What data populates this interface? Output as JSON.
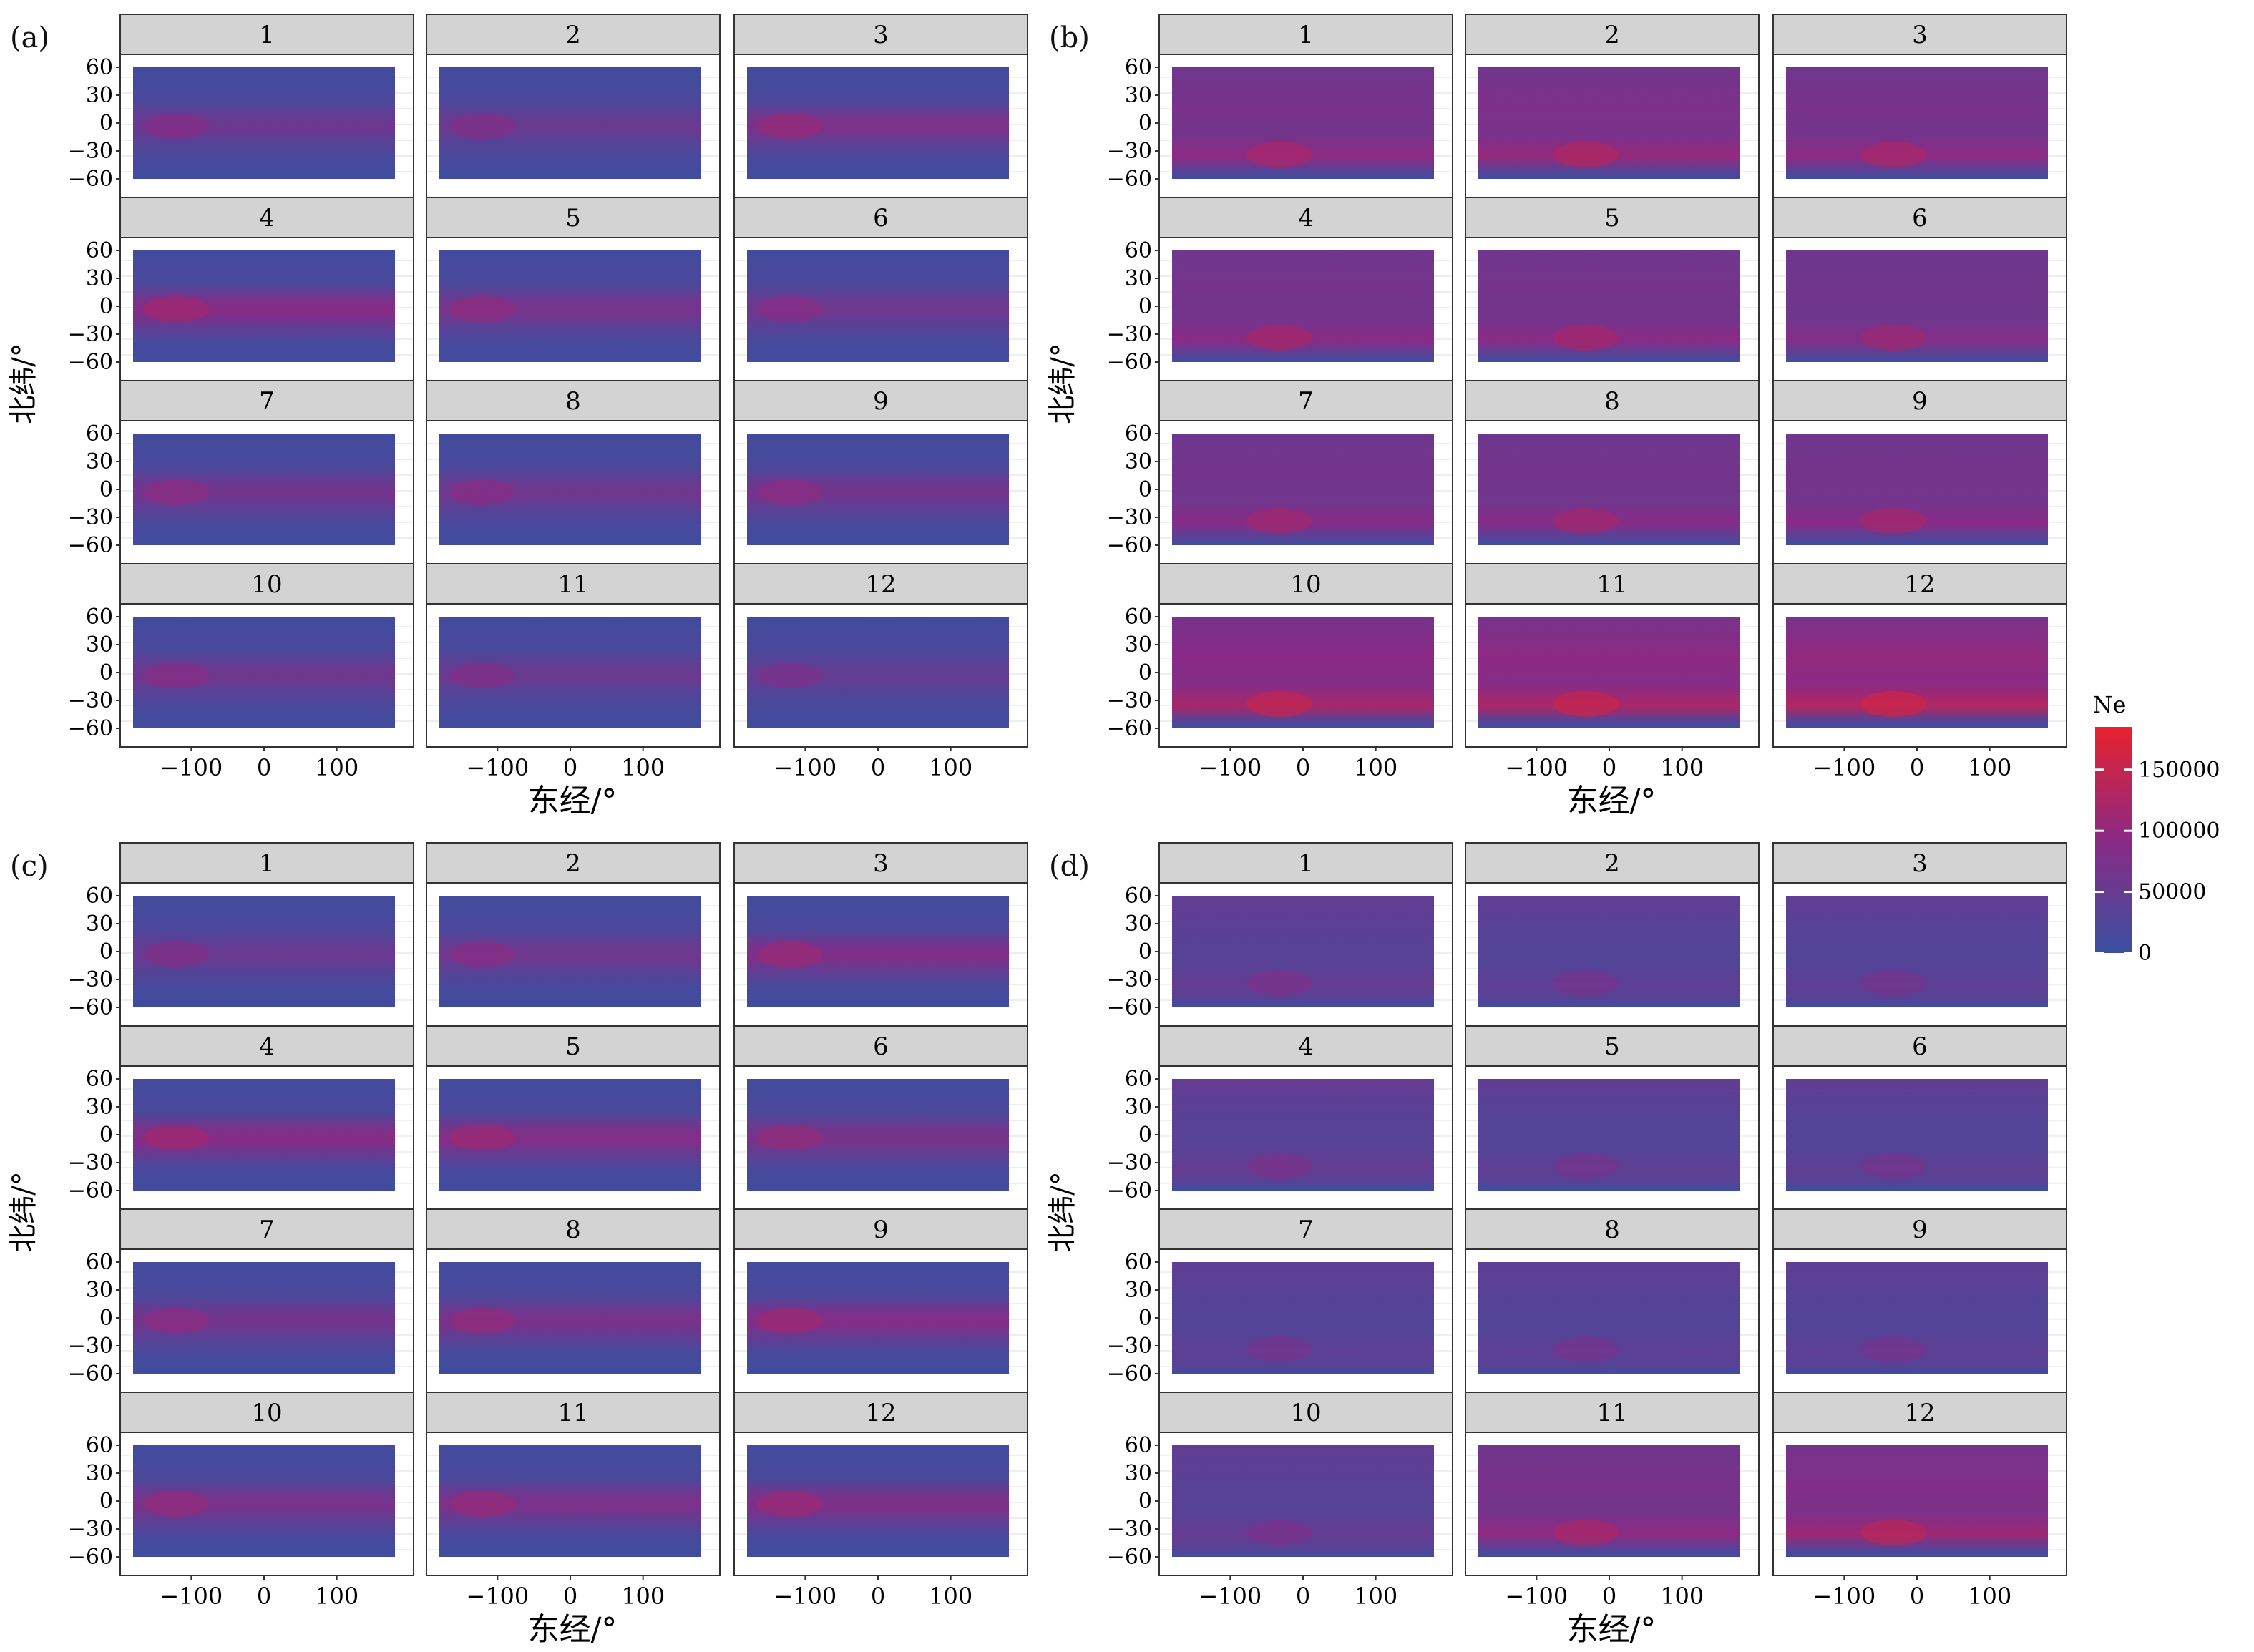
{
  "figure": {
    "panels": [
      {
        "id": "a",
        "label": "(a)",
        "months": [
          "1",
          "2",
          "3",
          "4",
          "5",
          "6",
          "7",
          "8",
          "9",
          "10",
          "11",
          "12"
        ],
        "intensity": [
          0.32,
          0.3,
          0.42,
          0.48,
          0.38,
          0.34,
          0.36,
          0.34,
          0.36,
          0.34,
          0.3,
          0.26
        ],
        "scheme": "equator"
      },
      {
        "id": "b",
        "label": "(b)",
        "months": [
          "1",
          "2",
          "3",
          "4",
          "5",
          "6",
          "7",
          "8",
          "9",
          "10",
          "11",
          "12"
        ],
        "intensity": [
          0.52,
          0.56,
          0.52,
          0.5,
          0.5,
          0.46,
          0.48,
          0.48,
          0.5,
          0.66,
          0.68,
          0.72
        ],
        "scheme": "south"
      },
      {
        "id": "c",
        "label": "(c)",
        "months": [
          "1",
          "2",
          "3",
          "4",
          "5",
          "6",
          "7",
          "8",
          "9",
          "10",
          "11",
          "12"
        ],
        "intensity": [
          0.3,
          0.34,
          0.44,
          0.48,
          0.46,
          0.4,
          0.36,
          0.4,
          0.46,
          0.4,
          0.42,
          0.44
        ],
        "scheme": "equator"
      },
      {
        "id": "d",
        "label": "(d)",
        "months": [
          "1",
          "2",
          "3",
          "4",
          "5",
          "6",
          "7",
          "8",
          "9",
          "10",
          "11",
          "12"
        ],
        "intensity": [
          0.26,
          0.22,
          0.22,
          0.26,
          0.22,
          0.22,
          0.22,
          0.22,
          0.22,
          0.26,
          0.52,
          0.6
        ],
        "scheme": "south"
      }
    ],
    "ylabel": "北纬/°",
    "xlabel": "东经/°",
    "yticks": [
      "60",
      "30",
      "0",
      "−30",
      "−60"
    ],
    "xticks": [
      "−100",
      "0",
      "100"
    ],
    "legend": {
      "title": "Ne",
      "ticks": [
        "150000",
        "100000",
        "50000",
        "0"
      ]
    }
  },
  "chart_data": {
    "type": "heatmap",
    "layout": "4 panels (a)-(d), each a 4x3 grid of monthly facets 1-12",
    "x": {
      "label": "东经/°",
      "range": [
        -180,
        180
      ],
      "ticks": [
        -100,
        0,
        100
      ]
    },
    "y": {
      "label": "北纬/°",
      "range": [
        -60,
        60
      ],
      "ticks": [
        60,
        30,
        0,
        -30,
        -60
      ]
    },
    "color_scale": {
      "name": "Ne",
      "min": 0,
      "max": 185000,
      "low_color": "#3a4fa0",
      "mid_color": "#8a2a85",
      "high_color": "#e8222e",
      "ticks": [
        0,
        50000,
        100000,
        150000
      ]
    },
    "panels": [
      {
        "label": "(a)",
        "facets": [
          1,
          2,
          3,
          4,
          5,
          6,
          7,
          8,
          9,
          10,
          11,
          12
        ],
        "peak_ne_estimate": [
          60000,
          55000,
          95000,
          120000,
          85000,
          70000,
          75000,
          70000,
          80000,
          75000,
          60000,
          50000
        ]
      },
      {
        "label": "(b)",
        "facets": [
          1,
          2,
          3,
          4,
          5,
          6,
          7,
          8,
          9,
          10,
          11,
          12
        ],
        "peak_ne_estimate": [
          110000,
          120000,
          110000,
          105000,
          105000,
          95000,
          100000,
          100000,
          105000,
          150000,
          155000,
          170000
        ]
      },
      {
        "label": "(c)",
        "facets": [
          1,
          2,
          3,
          4,
          5,
          6,
          7,
          8,
          9,
          10,
          11,
          12
        ],
        "peak_ne_estimate": [
          60000,
          70000,
          100000,
          115000,
          110000,
          90000,
          80000,
          90000,
          110000,
          90000,
          95000,
          100000
        ]
      },
      {
        "label": "(d)",
        "facets": [
          1,
          2,
          3,
          4,
          5,
          6,
          7,
          8,
          9,
          10,
          11,
          12
        ],
        "peak_ne_estimate": [
          50000,
          40000,
          40000,
          50000,
          40000,
          40000,
          40000,
          40000,
          40000,
          50000,
          120000,
          150000
        ]
      }
    ]
  }
}
